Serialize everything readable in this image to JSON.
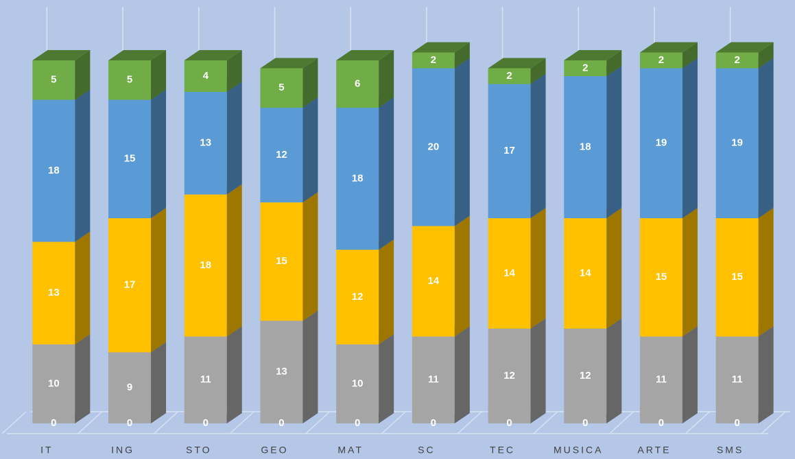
{
  "chart_data": {
    "type": "bar3d_stacked",
    "categories": [
      "IT",
      "ING",
      "STO",
      "GEO",
      "MAT",
      "SC",
      "TEC",
      "MUSICA",
      "ARTE",
      "SMS"
    ],
    "series": [
      {
        "color": "#4472c4",
        "values": [
          0,
          0,
          0,
          0,
          0,
          0,
          0,
          0,
          0,
          0
        ]
      },
      {
        "color": "#a5a5a5",
        "values": [
          10,
          9,
          11,
          13,
          10,
          11,
          12,
          12,
          11,
          11
        ]
      },
      {
        "color": "#ffc000",
        "values": [
          13,
          17,
          18,
          15,
          12,
          14,
          14,
          14,
          15,
          15
        ]
      },
      {
        "color": "#5b9bd5",
        "values": [
          18,
          15,
          13,
          12,
          18,
          20,
          17,
          18,
          19,
          19
        ]
      },
      {
        "color": "#70ad47",
        "values": [
          5,
          5,
          4,
          5,
          6,
          2,
          2,
          2,
          2,
          2
        ]
      }
    ],
    "ylim": [
      0,
      52
    ]
  }
}
